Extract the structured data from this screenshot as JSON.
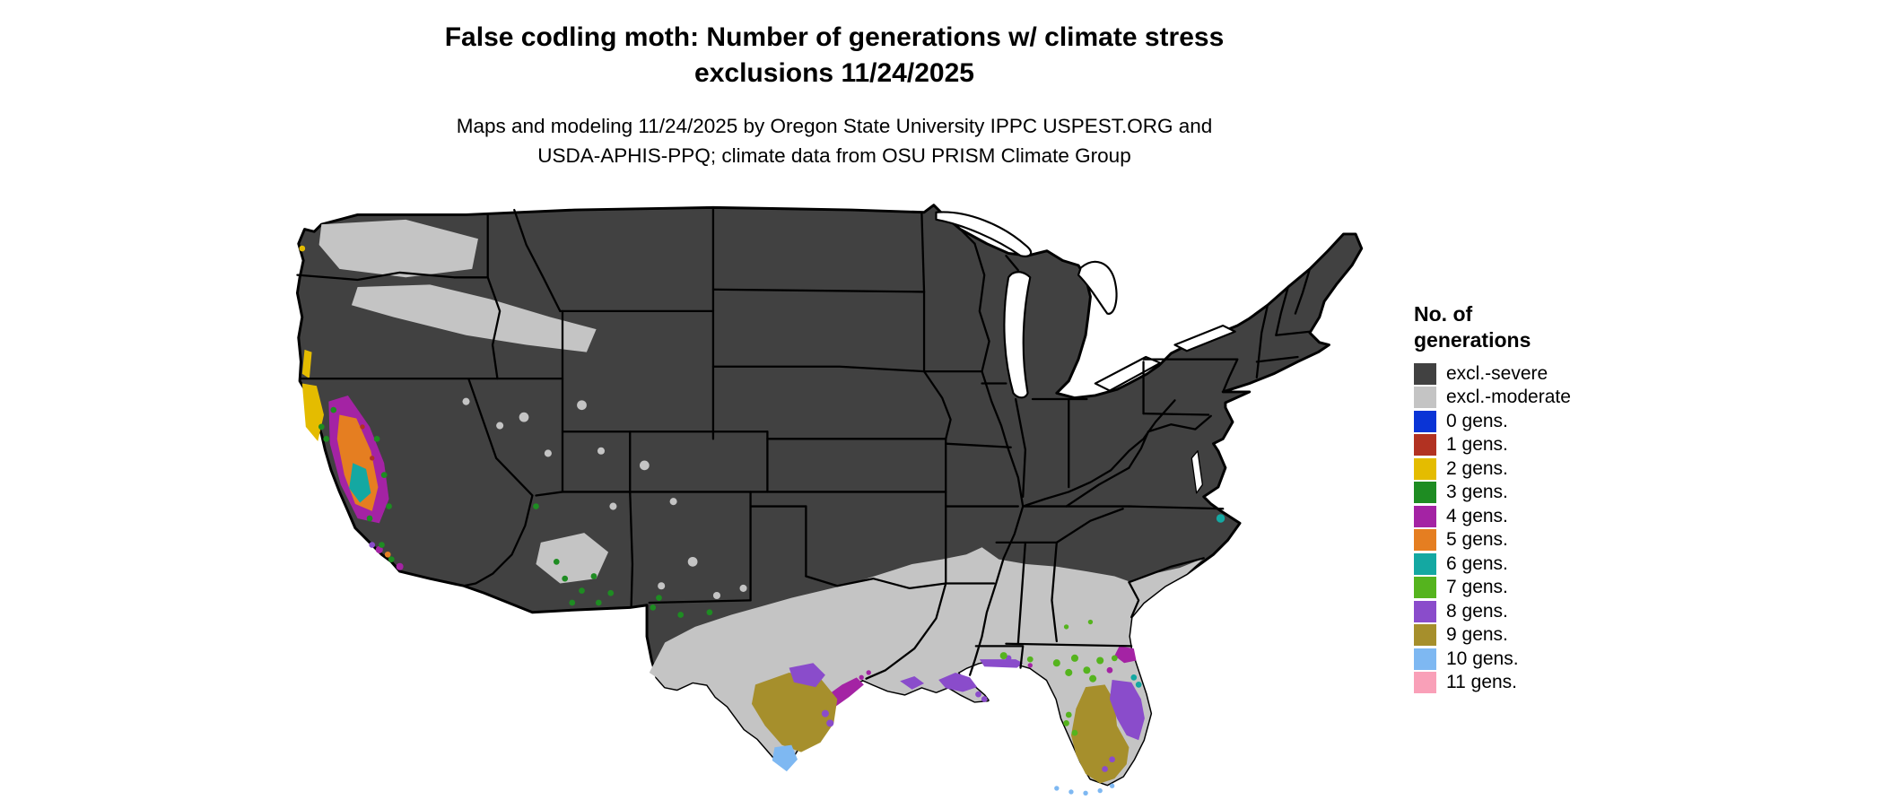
{
  "header": {
    "title_line1": "False codling moth: Number of generations w/ climate stress",
    "title_line2": "exclusions 11/24/2025",
    "subtitle_line1": "Maps and modeling 11/24/2025 by Oregon State University IPPC USPEST.ORG and",
    "subtitle_line2": "USDA-APHIS-PPQ; climate data from OSU PRISM Climate Group"
  },
  "legend": {
    "title_line1": "No. of",
    "title_line2": "generations",
    "items": [
      {
        "label": "excl.-severe",
        "color": "#414141"
      },
      {
        "label": "excl.-moderate",
        "color": "#C4C4C4"
      },
      {
        "label": "0 gens.",
        "color": "#0A34D6"
      },
      {
        "label": "1 gens.",
        "color": "#B23222"
      },
      {
        "label": "2 gens.",
        "color": "#E4BC00"
      },
      {
        "label": "3 gens.",
        "color": "#1E8C22"
      },
      {
        "label": "4 gens.",
        "color": "#A423A4"
      },
      {
        "label": "5 gens.",
        "color": "#E57E21"
      },
      {
        "label": "6 gens.",
        "color": "#14A8A2"
      },
      {
        "label": "7 gens.",
        "color": "#55B41E"
      },
      {
        "label": "8 gens.",
        "color": "#8A4CCB"
      },
      {
        "label": "9 gens.",
        "color": "#A68F2C"
      },
      {
        "label": "10 gens.",
        "color": "#7EB8F2"
      },
      {
        "label": "11 gens.",
        "color": "#F9A0B8"
      }
    ]
  },
  "map": {
    "background": "#FFFFFF",
    "outline_color": "#000000"
  }
}
